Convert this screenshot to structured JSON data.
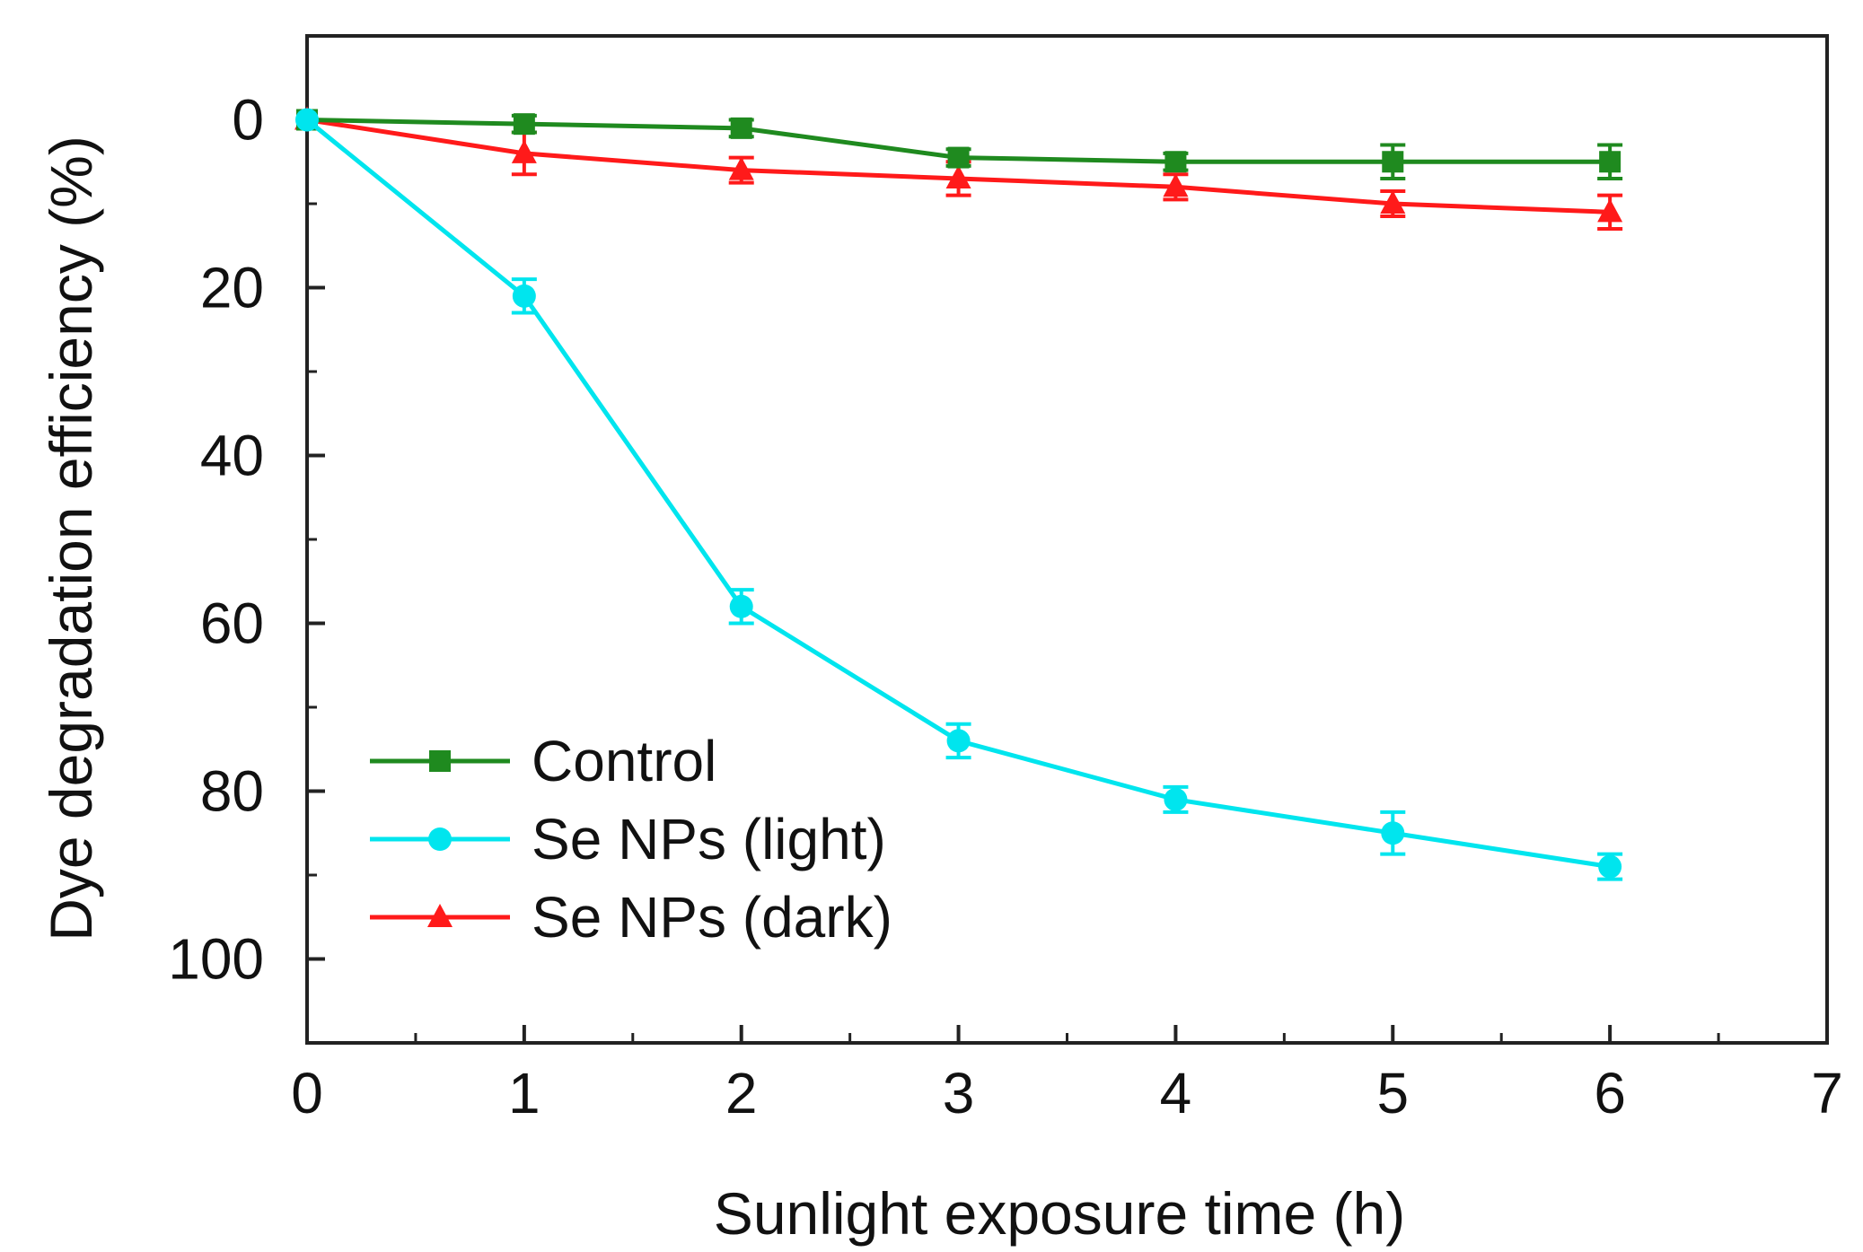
{
  "chart_data": {
    "type": "line",
    "title": "",
    "xlabel": "Sunlight exposure time (h)",
    "ylabel": "Dye degradation efficiency (%)",
    "xlim": [
      0,
      7
    ],
    "ylim": [
      -10,
      110
    ],
    "y_inverted": true,
    "x_ticks": [
      0,
      1,
      2,
      3,
      4,
      5,
      6,
      7
    ],
    "x_minor_ticks": [
      0.5,
      1.5,
      2.5,
      3.5,
      4.5,
      5.5,
      6.5
    ],
    "y_ticks": [
      0,
      20,
      40,
      60,
      80,
      100
    ],
    "y_minor_ticks": [
      -10,
      10,
      30,
      50,
      70,
      90,
      110
    ],
    "grid": false,
    "legend_position": "bottom-left",
    "x": [
      0,
      1,
      2,
      3,
      4,
      5,
      6
    ],
    "series": [
      {
        "name": "Control",
        "color": "#1f8a1f",
        "marker": "square",
        "values": [
          0,
          0.5,
          1,
          4.5,
          5,
          5,
          5
        ],
        "errors": [
          0.5,
          1,
          1,
          1,
          1,
          2,
          2
        ]
      },
      {
        "name": "Se NPs (light)",
        "color": "#00e5ee",
        "marker": "circle",
        "values": [
          0,
          21,
          58,
          74,
          81,
          85,
          89
        ],
        "errors": [
          0.5,
          2,
          2,
          2,
          1.5,
          2.5,
          1.5
        ]
      },
      {
        "name": "Se NPs (dark)",
        "color": "#ff1a1a",
        "marker": "triangle",
        "values": [
          0,
          4,
          6,
          7,
          8,
          10,
          11
        ],
        "errors": [
          0.5,
          2.5,
          1.5,
          2,
          1.5,
          1.5,
          2
        ]
      }
    ]
  }
}
